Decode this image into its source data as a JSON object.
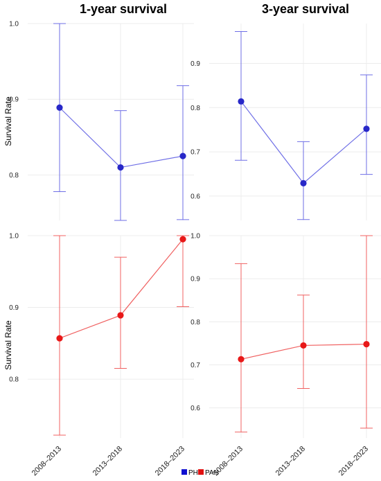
{
  "chart_data": [
    {
      "type": "scatter",
      "title": "1-year survival",
      "ylabel": "Survival Rate",
      "group": "PH",
      "categories": [
        "2008–2013",
        "2013–2018",
        "2018–2023"
      ],
      "values": [
        0.889,
        0.81,
        0.825
      ],
      "lower": [
        0.778,
        0.74,
        0.741
      ],
      "upper": [
        1.0,
        0.885,
        0.918
      ],
      "ylim": [
        0.74,
        1.0
      ],
      "yticks": [
        0.8,
        0.9,
        1.0
      ]
    },
    {
      "type": "scatter",
      "title": "3-year survival",
      "ylabel": "",
      "group": "PH",
      "categories": [
        "2008–2013",
        "2013–2018",
        "2018–2023"
      ],
      "values": [
        0.814,
        0.629,
        0.752
      ],
      "lower": [
        0.681,
        0.547,
        0.649
      ],
      "upper": [
        0.972,
        0.723,
        0.874
      ],
      "ylim": [
        0.545,
        0.99
      ],
      "yticks": [
        0.6,
        0.7,
        0.8,
        0.9
      ]
    },
    {
      "type": "scatter",
      "title": "",
      "ylabel": "Survival Rate",
      "group": "PAH",
      "categories": [
        "2008–2013",
        "2013–2018",
        "2018–2023"
      ],
      "values": [
        0.857,
        0.889,
        0.995
      ],
      "lower": [
        0.722,
        0.815,
        0.901
      ],
      "upper": [
        1.0,
        0.97,
        1.0
      ],
      "ylim": [
        0.718,
        1.0
      ],
      "yticks": [
        0.8,
        0.9,
        1.0
      ]
    },
    {
      "type": "scatter",
      "title": "",
      "ylabel": "",
      "group": "PAH",
      "categories": [
        "2008–2013",
        "2013–2018",
        "2018–2023"
      ],
      "values": [
        0.713,
        0.745,
        0.748
      ],
      "lower": [
        0.544,
        0.645,
        0.553
      ],
      "upper": [
        0.935,
        0.862,
        1.0
      ],
      "ylim": [
        0.53,
        1.0
      ],
      "yticks": [
        0.6,
        0.7,
        0.8,
        0.9,
        1.0
      ]
    }
  ],
  "legend": [
    {
      "label": "PH",
      "color": "#1010d0"
    },
    {
      "label": "PAH",
      "color": "#e01010"
    }
  ],
  "colors": {
    "PH_line": "#6e6ee6",
    "PH_point": "#2828c8",
    "PAH_line": "#f06060",
    "PAH_point": "#e81818"
  }
}
